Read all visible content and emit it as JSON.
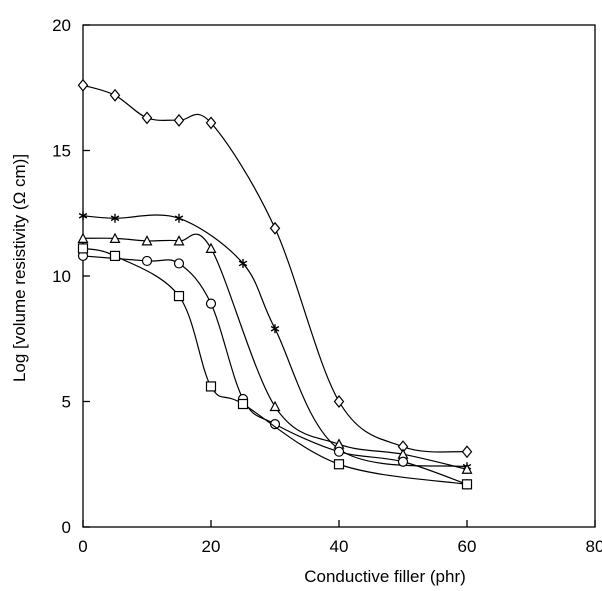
{
  "chart_data": {
    "type": "line",
    "title": "",
    "xlabel": "Conductive filler (phr)",
    "ylabel": "Log [volume resistivity (Ω cm)]",
    "xlim": [
      0,
      80
    ],
    "ylim": [
      0,
      20
    ],
    "xticks": [
      0,
      20,
      40,
      60,
      80
    ],
    "yticks": [
      0,
      5,
      10,
      15,
      20
    ],
    "grid": false,
    "legend": "none",
    "series": [
      {
        "marker": "diamond",
        "color": "#000000",
        "points": [
          [
            0,
            17.6
          ],
          [
            5,
            17.2
          ],
          [
            10,
            16.3
          ],
          [
            15,
            16.2
          ],
          [
            20,
            16.1
          ],
          [
            30,
            11.9
          ],
          [
            40,
            5.0
          ],
          [
            50,
            3.2
          ],
          [
            60,
            3.0
          ]
        ]
      },
      {
        "marker": "asterisk",
        "color": "#000000",
        "points": [
          [
            0,
            12.4
          ],
          [
            5,
            12.3
          ],
          [
            15,
            12.3
          ],
          [
            25,
            10.5
          ],
          [
            30,
            7.9
          ],
          [
            40,
            3.1
          ],
          [
            60,
            2.4
          ]
        ]
      },
      {
        "marker": "triangle",
        "color": "#000000",
        "points": [
          [
            0,
            11.5
          ],
          [
            5,
            11.5
          ],
          [
            10,
            11.4
          ],
          [
            15,
            11.4
          ],
          [
            20,
            11.1
          ],
          [
            30,
            4.8
          ],
          [
            40,
            3.3
          ],
          [
            50,
            2.9
          ],
          [
            60,
            2.3
          ]
        ]
      },
      {
        "marker": "circle",
        "color": "#000000",
        "points": [
          [
            0,
            10.8
          ],
          [
            10,
            10.6
          ],
          [
            15,
            10.5
          ],
          [
            20,
            8.9
          ],
          [
            25,
            5.1
          ],
          [
            30,
            4.1
          ],
          [
            40,
            3.0
          ],
          [
            50,
            2.6
          ],
          [
            60,
            1.7
          ]
        ]
      },
      {
        "marker": "square",
        "color": "#000000",
        "points": [
          [
            0,
            11.1
          ],
          [
            5,
            10.8
          ],
          [
            15,
            9.2
          ],
          [
            20,
            5.6
          ],
          [
            25,
            4.9
          ],
          [
            40,
            2.5
          ],
          [
            60,
            1.7
          ]
        ]
      }
    ]
  }
}
